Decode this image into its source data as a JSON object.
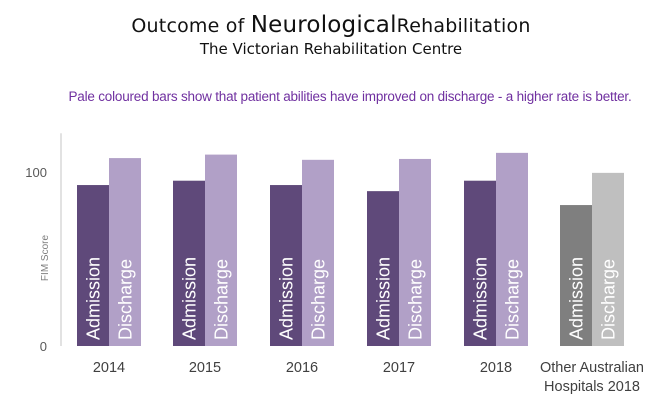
{
  "title": {
    "part1": "Outcome of",
    "part2": "Neurological",
    "part3": "Rehabilitation"
  },
  "subtitle": "The Victorian Rehabilitation Centre",
  "note": "Pale coloured bars show that patient abilities have improved on discharge - a higher rate is better.",
  "colors": {
    "admission": "#5f497a",
    "discharge": "#b1a0c7",
    "other_admission": "#7f7f7f",
    "other_discharge": "#bfbfbf",
    "axis": "#d9d9d9"
  },
  "chart_data": {
    "type": "bar",
    "title": "Outcome of Neurological Rehabilitation",
    "subtitle": "The Victorian Rehabilitation Centre",
    "xlabel": "",
    "ylabel": "FIM Score",
    "ylim": [
      0,
      120
    ],
    "yticks": [
      0,
      100
    ],
    "grid": false,
    "categories": [
      "2014",
      "2015",
      "2016",
      "2017",
      "2018",
      "Other Australian Hospitals 2018"
    ],
    "category_lines": [
      [
        "2014"
      ],
      [
        "2015"
      ],
      [
        "2016"
      ],
      [
        "2017"
      ],
      [
        "2018"
      ],
      [
        "Other Australian",
        "Hospitals 2018"
      ]
    ],
    "series": [
      {
        "name": "Admission",
        "values": [
          92.5,
          95,
          92.5,
          89,
          95,
          81
        ]
      },
      {
        "name": "Discharge",
        "values": [
          108,
          110,
          107,
          107.5,
          111,
          99.5
        ]
      }
    ],
    "bar_labels": [
      "Admission",
      "Discharge"
    ]
  }
}
